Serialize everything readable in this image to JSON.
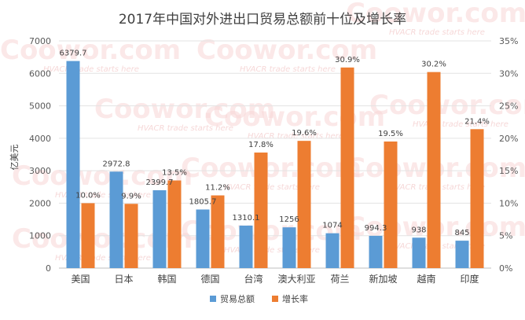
{
  "chart_data": {
    "type": "bar",
    "title": "2017年中国对外进出口贸易总额前十位及增长率",
    "ylabel": "亿美元",
    "categories": [
      "美国",
      "日本",
      "韩国",
      "德国",
      "台湾",
      "澳大利亚",
      "荷兰",
      "新加坡",
      "越南",
      "印度"
    ],
    "y_left": {
      "min": 0,
      "max": 7000,
      "ticks": [
        "0",
        "1000",
        "2000",
        "3000",
        "4000",
        "5000",
        "6000",
        "7000"
      ]
    },
    "y_right": {
      "min": 0,
      "max": 35,
      "ticks": [
        "0%",
        "5%",
        "10%",
        "15%",
        "20%",
        "25%",
        "30%",
        "35%"
      ]
    },
    "series": [
      {
        "name": "贸易总额",
        "axis": "left",
        "values": [
          6379.7,
          2972.8,
          2399.7,
          1805.7,
          1310.1,
          1256,
          1074,
          994.3,
          938,
          845
        ],
        "labels": [
          "6379.7",
          "2972.8",
          "2399.7",
          "1805.7",
          "1310.1",
          "1256",
          "1074",
          "994.3",
          "938",
          "845"
        ]
      },
      {
        "name": "增长率",
        "axis": "right",
        "values": [
          10.0,
          9.9,
          13.5,
          11.2,
          17.8,
          19.6,
          30.9,
          19.5,
          30.2,
          21.4
        ],
        "labels": [
          "10.0%",
          "9.9%",
          "13.5%",
          "11.2%",
          "17.8%",
          "19.6%",
          "30.9%",
          "19.5%",
          "30.2%",
          "21.4%"
        ]
      }
    ],
    "legend": "bottom",
    "colors": {
      "trade": "#5b9bd5",
      "growth": "#ed7d31"
    }
  },
  "watermark": {
    "brand": "Coowor.com",
    "slogan": "HVACR trade starts here"
  }
}
